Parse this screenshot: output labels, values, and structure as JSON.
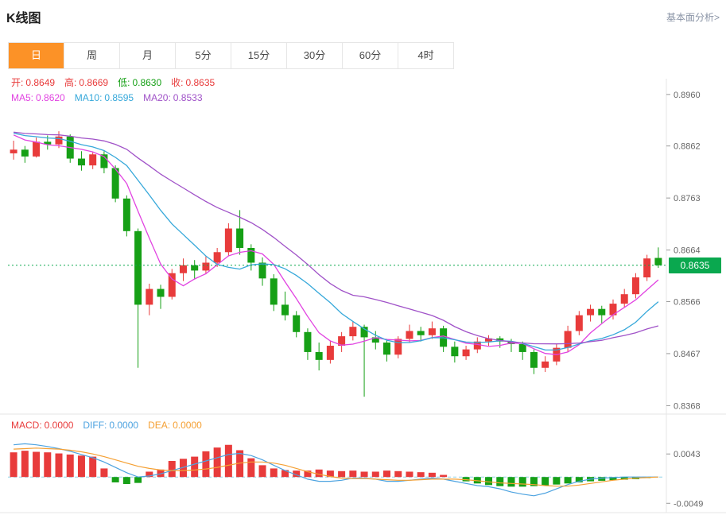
{
  "header": {
    "title": "K线图",
    "link": "基本面分析>"
  },
  "tabs": [
    {
      "key": "day",
      "label": "日",
      "active": true
    },
    {
      "key": "week",
      "label": "周",
      "active": false
    },
    {
      "key": "month",
      "label": "月",
      "active": false
    },
    {
      "key": "m5",
      "label": "5分",
      "active": false
    },
    {
      "key": "m15",
      "label": "15分",
      "active": false
    },
    {
      "key": "m30",
      "label": "30分",
      "active": false
    },
    {
      "key": "m60",
      "label": "60分",
      "active": false
    },
    {
      "key": "h4",
      "label": "4时",
      "active": false
    }
  ],
  "ohlc_legend": [
    {
      "label": "开:",
      "value": "0.8649",
      "color": "#e83b3b"
    },
    {
      "label": "高:",
      "value": "0.8669",
      "color": "#e83b3b"
    },
    {
      "label": "低:",
      "value": "0.8630",
      "color": "#16a016"
    },
    {
      "label": "收:",
      "value": "0.8635",
      "color": "#e83b3b"
    }
  ],
  "ma_legend": [
    {
      "label": "MA5:",
      "value": "0.8620",
      "color": "#e143e1",
      "period": 5
    },
    {
      "label": "MA10:",
      "value": "0.8595",
      "color": "#36a8da",
      "period": 10
    },
    {
      "label": "MA20:",
      "value": "0.8533",
      "color": "#a052c8",
      "period": 20
    }
  ],
  "macd_legend": [
    {
      "label": "MACD:",
      "value": "0.0000",
      "color": "#e83b3b"
    },
    {
      "label": "DIFF:",
      "value": "0.0000",
      "color": "#4da3e0"
    },
    {
      "label": "DEA:",
      "value": "0.0000",
      "color": "#f5a033"
    }
  ],
  "price_marker": {
    "value": "0.8635"
  },
  "colors": {
    "up": "#e83b3b",
    "down": "#16a016",
    "price_tag": "#0aa84f",
    "zero_line": "#8fd4e8",
    "accent": "#fc9227",
    "axis_text": "#666666",
    "border": "#e6e6e6"
  },
  "chart_data": [
    {
      "type": "candlestick",
      "panel": "price",
      "title": "K线图",
      "grid": false,
      "y_ticks": [
        "0.8960",
        "0.8862",
        "0.8763",
        "0.8664",
        "0.8566",
        "0.8467",
        "0.8368"
      ],
      "y_range": [
        0.8355,
        0.899
      ],
      "current_price": 0.8635,
      "ma_seed": 0.889,
      "candles": [
        [
          0.8848,
          0.8872,
          0.8836,
          0.8855
        ],
        [
          0.8855,
          0.8862,
          0.883,
          0.8842
        ],
        [
          0.8842,
          0.8878,
          0.884,
          0.887
        ],
        [
          0.887,
          0.8882,
          0.8855,
          0.8865
        ],
        [
          0.8865,
          0.889,
          0.8858,
          0.888
        ],
        [
          0.888,
          0.8884,
          0.883,
          0.8838
        ],
        [
          0.8838,
          0.8852,
          0.8815,
          0.8825
        ],
        [
          0.8825,
          0.885,
          0.8818,
          0.8846
        ],
        [
          0.8846,
          0.8852,
          0.881,
          0.882
        ],
        [
          0.882,
          0.8825,
          0.8755,
          0.8762
        ],
        [
          0.8762,
          0.8768,
          0.869,
          0.87
        ],
        [
          0.87,
          0.8705,
          0.844,
          0.856
        ],
        [
          0.856,
          0.86,
          0.854,
          0.859
        ],
        [
          0.859,
          0.8598,
          0.8552,
          0.8575
        ],
        [
          0.8575,
          0.8628,
          0.857,
          0.862
        ],
        [
          0.862,
          0.8648,
          0.8605,
          0.8635
        ],
        [
          0.8635,
          0.8645,
          0.8608,
          0.8625
        ],
        [
          0.8625,
          0.8652,
          0.8618,
          0.864
        ],
        [
          0.864,
          0.8668,
          0.8632,
          0.866
        ],
        [
          0.866,
          0.8715,
          0.8652,
          0.8705
        ],
        [
          0.8705,
          0.874,
          0.8655,
          0.8668
        ],
        [
          0.8668,
          0.8675,
          0.8625,
          0.864
        ],
        [
          0.864,
          0.865,
          0.8596,
          0.861
        ],
        [
          0.861,
          0.8618,
          0.8548,
          0.856
        ],
        [
          0.856,
          0.8585,
          0.853,
          0.854
        ],
        [
          0.854,
          0.8548,
          0.8498,
          0.8508
        ],
        [
          0.8508,
          0.8515,
          0.8455,
          0.847
        ],
        [
          0.847,
          0.8488,
          0.8435,
          0.8455
        ],
        [
          0.8455,
          0.8492,
          0.8448,
          0.8482
        ],
        [
          0.8482,
          0.8508,
          0.847,
          0.85
        ],
        [
          0.85,
          0.8528,
          0.8492,
          0.8518
        ],
        [
          0.8518,
          0.8522,
          0.8385,
          0.8498
        ],
        [
          0.8498,
          0.851,
          0.8475,
          0.8488
        ],
        [
          0.8488,
          0.8495,
          0.8452,
          0.8465
        ],
        [
          0.8465,
          0.85,
          0.8458,
          0.8495
        ],
        [
          0.8495,
          0.8522,
          0.8488,
          0.851
        ],
        [
          0.851,
          0.8518,
          0.849,
          0.8502
        ],
        [
          0.8502,
          0.8528,
          0.8495,
          0.8515
        ],
        [
          0.8515,
          0.852,
          0.847,
          0.848
        ],
        [
          0.848,
          0.849,
          0.845,
          0.8462
        ],
        [
          0.8462,
          0.8482,
          0.8455,
          0.8475
        ],
        [
          0.8475,
          0.8498,
          0.8468,
          0.849
        ],
        [
          0.849,
          0.8502,
          0.8482,
          0.8496
        ],
        [
          0.8496,
          0.85,
          0.8478,
          0.849
        ],
        [
          0.849,
          0.8495,
          0.847,
          0.8485
        ],
        [
          0.8485,
          0.849,
          0.8455,
          0.847
        ],
        [
          0.847,
          0.8475,
          0.8428,
          0.844
        ],
        [
          0.844,
          0.8462,
          0.8432,
          0.8452
        ],
        [
          0.8452,
          0.8485,
          0.8445,
          0.8478
        ],
        [
          0.8478,
          0.852,
          0.847,
          0.851
        ],
        [
          0.851,
          0.8548,
          0.8502,
          0.854
        ],
        [
          0.854,
          0.856,
          0.8528,
          0.8552
        ],
        [
          0.8552,
          0.8558,
          0.8525,
          0.854
        ],
        [
          0.854,
          0.857,
          0.8532,
          0.8562
        ],
        [
          0.8562,
          0.859,
          0.8555,
          0.858
        ],
        [
          0.858,
          0.862,
          0.8572,
          0.8612
        ],
        [
          0.8612,
          0.8655,
          0.8605,
          0.8648
        ],
        [
          0.8649,
          0.8669,
          0.863,
          0.8635
        ]
      ]
    },
    {
      "type": "bar",
      "panel": "macd",
      "y_ticks": [
        "0.0043",
        "-0.0049"
      ],
      "y_range": [
        -0.0056,
        0.011
      ],
      "histogram": [
        0.0046,
        0.0049,
        0.0047,
        0.0046,
        0.0044,
        0.0042,
        0.004,
        0.0038,
        0.0016,
        -0.001,
        -0.0013,
        -0.0011,
        0.001,
        0.0014,
        0.003,
        0.0034,
        0.0038,
        0.0048,
        0.0055,
        0.006,
        0.005,
        0.0035,
        0.0022,
        0.0016,
        0.0013,
        0.0012,
        0.0012,
        0.0014,
        0.0012,
        0.0011,
        0.0012,
        0.001,
        0.001,
        0.0012,
        0.0011,
        0.001,
        0.0009,
        0.0008,
        0.0004,
        0.0,
        -0.0008,
        -0.0012,
        -0.0015,
        -0.0017,
        -0.0018,
        -0.0018,
        -0.0017,
        -0.0016,
        -0.0014,
        -0.0012,
        -0.001,
        -0.0008,
        -0.0007,
        -0.0006,
        -0.0005,
        -0.0004,
        -0.0002,
        0.0
      ],
      "series": [
        {
          "name": "DIFF",
          "color": "#4da3e0",
          "values": [
            0.006,
            0.0062,
            0.006,
            0.0057,
            0.0053,
            0.0048,
            0.0042,
            0.0036,
            0.0028,
            0.0018,
            0.0008,
            0.0,
            0.0002,
            0.0006,
            0.0012,
            0.0018,
            0.0024,
            0.003,
            0.0036,
            0.0042,
            0.0044,
            0.004,
            0.0032,
            0.0022,
            0.0012,
            0.0004,
            -0.0004,
            -0.0008,
            -0.0008,
            -0.0006,
            -0.0002,
            -0.0002,
            -0.0004,
            -0.0008,
            -0.0008,
            -0.0006,
            -0.0004,
            -0.0002,
            -0.0004,
            -0.0008,
            -0.0012,
            -0.0016,
            -0.0018,
            -0.0022,
            -0.0028,
            -0.0032,
            -0.0035,
            -0.003,
            -0.0022,
            -0.0014,
            -0.0008,
            -0.0004,
            -0.0002,
            -0.0001,
            0.0,
            0.0,
            0.0,
            0.0
          ]
        },
        {
          "name": "DEA",
          "color": "#f5a033",
          "values": [
            0.0052,
            0.0053,
            0.0054,
            0.0053,
            0.0052,
            0.005,
            0.0047,
            0.0043,
            0.0038,
            0.0032,
            0.0026,
            0.002,
            0.0016,
            0.0013,
            0.0012,
            0.0012,
            0.0013,
            0.0015,
            0.0018,
            0.0022,
            0.0026,
            0.0028,
            0.0028,
            0.0026,
            0.0022,
            0.0016,
            0.001,
            0.0005,
            0.0001,
            -0.0002,
            -0.0003,
            -0.0003,
            -0.0004,
            -0.0005,
            -0.0006,
            -0.0006,
            -0.0005,
            -0.0004,
            -0.0004,
            -0.0004,
            -0.0005,
            -0.0007,
            -0.0009,
            -0.0011,
            -0.0012,
            -0.0013,
            -0.0014,
            -0.0016,
            -0.0017,
            -0.0017,
            -0.0015,
            -0.0012,
            -0.0009,
            -0.0006,
            -0.0004,
            -0.0002,
            -0.0001,
            0.0
          ]
        }
      ]
    }
  ]
}
